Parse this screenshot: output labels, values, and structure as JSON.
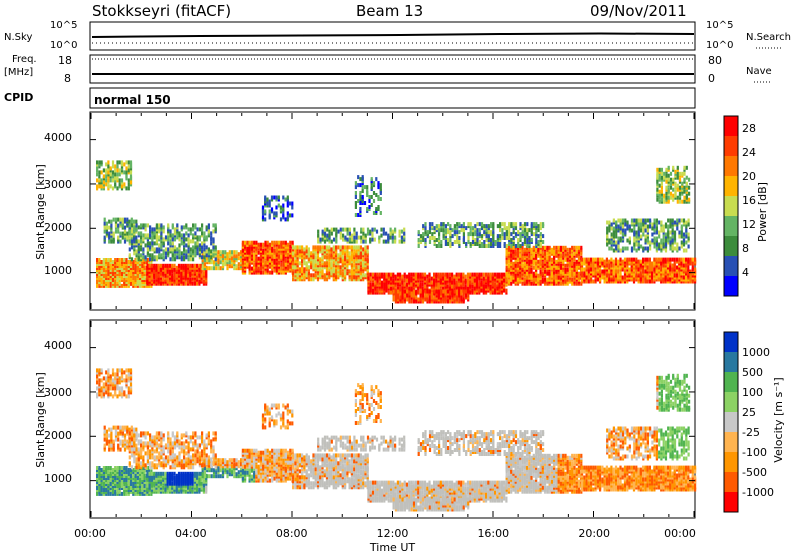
{
  "header": {
    "station": "Stokkseyri (fitACF)",
    "beam": "Beam 13",
    "date": "09/Nov/2011"
  },
  "strip": {
    "nsky_label": "N.Sky",
    "nsky_ticks": [
      "10^5",
      "10^0"
    ],
    "nsearch_label": "N.Search",
    "nsearch_ticks": [
      "10^5",
      "10^0"
    ],
    "freq_label": "Freq.",
    "freq_unit": "[MHz]",
    "freq_ticks": [
      "18",
      "8"
    ],
    "nave_label": "Nave",
    "nave_ticks": [
      "80",
      "0"
    ],
    "cpid_label": "CPID",
    "cpid_value": "normal 150"
  },
  "colors": {
    "frame": "#000000",
    "power_scale": [
      "#0000ff",
      "#2850b4",
      "#3c8c3c",
      "#64b464",
      "#c8dc50",
      "#ffb400",
      "#ff7800",
      "#ff3c00",
      "#ff0000"
    ],
    "velocity_scale": [
      "#ff0000",
      "#ff5a00",
      "#ff9600",
      "#ffb450",
      "#c8c8c8",
      "#8cd264",
      "#50b450",
      "#2878a0",
      "#0032c8"
    ],
    "ground_scatter": "#c0c0bc"
  },
  "chart_data": [
    {
      "type": "heatmap",
      "title": "",
      "ylabel": "Slant Range [km]",
      "xlabel": "Time UT",
      "xlim": [
        "00:00",
        "24:00"
      ],
      "ylim": [
        180,
        4600
      ],
      "x_ticks": [
        "00:00",
        "04:00",
        "08:00",
        "12:00",
        "16:00",
        "20:00",
        "00:00"
      ],
      "y_ticks": [
        "1000",
        "2000",
        "3000",
        "4000"
      ],
      "colorbar_label": "Power [dB]",
      "colorbar_ticks": [
        "4",
        "8",
        "12",
        "16",
        "20",
        "24",
        "28"
      ],
      "colorbar_range": [
        0,
        30
      ]
    },
    {
      "type": "heatmap",
      "title": "",
      "ylabel": "Slant Range [km]",
      "xlabel": "Time UT",
      "xlim": [
        "00:00",
        "24:00"
      ],
      "ylim": [
        180,
        4600
      ],
      "x_ticks": [
        "00:00",
        "04:00",
        "08:00",
        "12:00",
        "16:00",
        "20:00",
        "00:00"
      ],
      "y_ticks": [
        "1000",
        "2000",
        "3000",
        "4000"
      ],
      "colorbar_label": "Velocity [m s⁻¹]",
      "colorbar_ticks": [
        "1000",
        "500",
        "100",
        "25",
        "-25",
        "-100",
        "-500",
        "-1000"
      ]
    }
  ]
}
